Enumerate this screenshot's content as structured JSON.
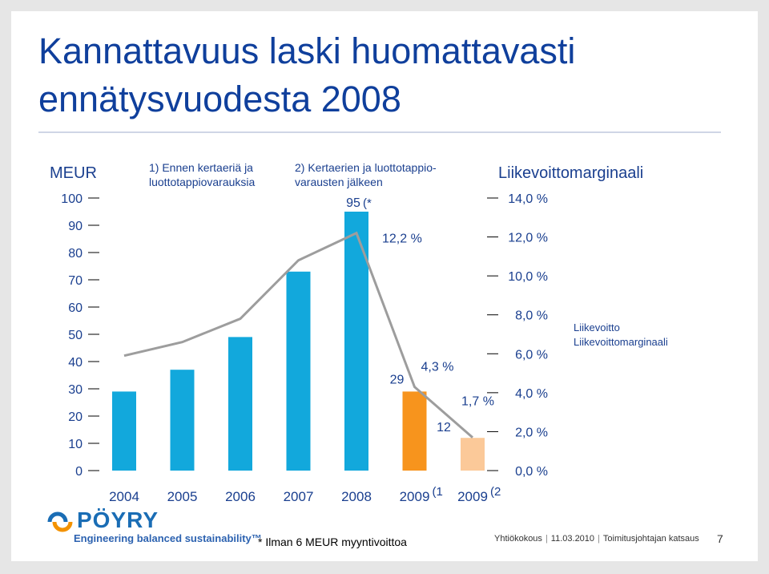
{
  "slide": {
    "title_line1": "Kannattavuus laski huomattavasti",
    "title_line2": "ennätysvuodesta 2008",
    "footnote": "* Ilman 6 MEUR myyntivoittoa",
    "footer": {
      "event": "Yhtiökokous",
      "date": "11.03.2010",
      "section": "Toimitusjohtajan katsaus",
      "page": "7"
    },
    "logo": {
      "name": "PÖYRY",
      "tagline": "Engineering balanced sustainability™"
    }
  },
  "chart_data": {
    "type": "bar",
    "left_axis_title": "MEUR",
    "right_axis_title": "Liikevoittomarginaali",
    "left_ticks": [
      "0",
      "10",
      "20",
      "30",
      "40",
      "50",
      "60",
      "70",
      "80",
      "90",
      "100"
    ],
    "right_ticks": [
      "0,0 %",
      "2,0 %",
      "4,0 %",
      "6,0 %",
      "8,0 %",
      "10,0 %",
      "12,0 %",
      "14,0 %"
    ],
    "ylim_left": [
      0,
      100
    ],
    "ylim_right": [
      0,
      14
    ],
    "categories": [
      "2004",
      "2005",
      "2006",
      "2007",
      "2008",
      "2009",
      "2009"
    ],
    "category_suffixes": [
      "",
      "",
      "",
      "",
      "",
      "(1",
      "(2"
    ],
    "group_labels": [
      {
        "line1": "1) Ennen kertaeriä ja",
        "line2": "luottotappiovarauksia"
      },
      {
        "line1": "2) Kertaerien ja luottotappio-",
        "line2": "varausten jälkeen"
      }
    ],
    "series": [
      {
        "name": "Liikevoitto",
        "axis": "left",
        "values": [
          29,
          37,
          49,
          73,
          95,
          29,
          12
        ],
        "colors": [
          "#12a8dc",
          "#12a8dc",
          "#12a8dc",
          "#12a8dc",
          "#12a8dc",
          "#f7941d",
          "#fbc999"
        ]
      },
      {
        "name": "Liikevoittomarginaali",
        "axis": "right",
        "values": [
          5.9,
          6.6,
          7.8,
          10.8,
          12.2,
          4.3,
          1.7
        ],
        "color": "#9d9d9d"
      }
    ],
    "bar_labels": [
      {
        "index": 4,
        "text": "95",
        "suffix": "(*"
      },
      {
        "index": 5,
        "text": "29"
      },
      {
        "index": 6,
        "text": "12"
      }
    ],
    "line_labels": [
      {
        "index": 4,
        "text": "12,2 %"
      },
      {
        "index": 5,
        "text": "4,3 %"
      },
      {
        "index": 6,
        "text": "1,7 %"
      }
    ],
    "legend": {
      "position": "right",
      "entries": [
        "Liikevoitto",
        "Liikevoittomarginaali"
      ]
    },
    "grid": false
  }
}
